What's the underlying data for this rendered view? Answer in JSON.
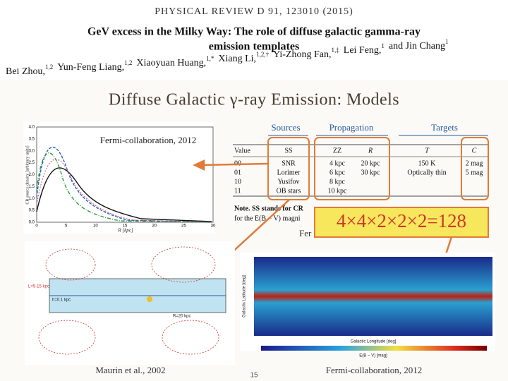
{
  "header": {
    "journal": "PHYSICAL REVIEW D 91, 123010 (2015)",
    "title_lines": [
      "GeV excess in the Milky Way: The role of diffuse galactic gamma-ray",
      "emission templates"
    ],
    "authors": [
      {
        "name": "Bei Zhou,",
        "aff": "1,2"
      },
      {
        "name": "Yun-Feng Liang,",
        "aff": "1,2"
      },
      {
        "name": "Xiaoyuan Huang,",
        "aff": "1,*"
      },
      {
        "name": "Xiang Li,",
        "aff": "1,2,†"
      },
      {
        "name": "Yi-Zhong Fan,",
        "aff": "1,‡"
      },
      {
        "name": "Lei Feng,",
        "aff": "1"
      },
      {
        "name": "and Jin Chang",
        "aff": "1"
      }
    ]
  },
  "slide": {
    "title": "Diffuse Galactic γ-ray Emission: Models",
    "plot": {
      "caption": "Fermi-collaboration, 2012",
      "ylabel": "CR source density [arbitrary units]",
      "xlabel": "R [kpc]",
      "yticks": [
        "4.0",
        "3.5",
        "3.0",
        "2.5",
        "2.0",
        "1.5",
        "1.0",
        "0.5",
        "0.0"
      ],
      "xticks": [
        "0",
        "5",
        "10",
        "15",
        "20",
        "25",
        "30"
      ]
    },
    "table": {
      "groups": [
        "Sources",
        "Propagation",
        "Targets"
      ],
      "columns": [
        "Value",
        "SS",
        "ZZ",
        "R",
        "T",
        "C"
      ],
      "rows": [
        [
          "00",
          "SNR",
          "4 kpc",
          "20 kpc",
          "150 K",
          "2 mag"
        ],
        [
          "01",
          "Lorimer",
          "6 kpc",
          "30 kpc",
          "Optically thin",
          "5 mag"
        ],
        [
          "10",
          "Yusifov",
          "8 kpc"
        ],
        [
          "11",
          "OB stars",
          "10 kpc"
        ]
      ],
      "note_lines": [
        "Note. SS stands for CR",
        "for the E(B − V) magni"
      ],
      "partial_caption": "Fer"
    },
    "formula": "4×4×2×2×2=128",
    "diagram": {
      "labels": [
        "L=5-15 kpc",
        "h=0.1 kpc",
        "R=20 kpc"
      ],
      "caption": "Maurin et al., 2002"
    },
    "skymap": {
      "ylabel": "Galactic Latitude [deg]",
      "xlabel": "Galactic Longitude [deg]",
      "colorbar_label": "E(B − V) [mag]",
      "caption": "Fermi-collaboration, 2012"
    },
    "page_number": "15"
  }
}
